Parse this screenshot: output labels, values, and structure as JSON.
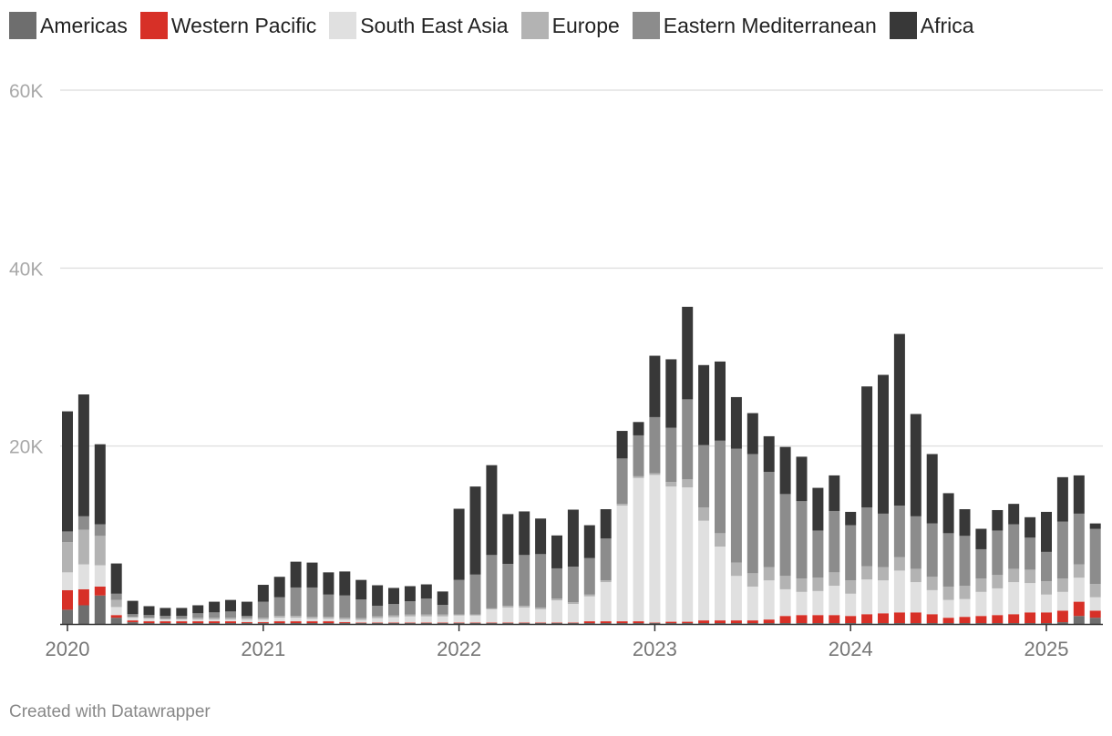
{
  "chart_data": {
    "type": "bar",
    "stacked": true,
    "title": "",
    "xlabel": "",
    "ylabel": "",
    "ylim": [
      0,
      60000
    ],
    "y_ticks": [
      {
        "value": 20000,
        "label": "20K"
      },
      {
        "value": 40000,
        "label": "40K"
      },
      {
        "value": 60000,
        "label": "60K"
      }
    ],
    "x_ticks": [
      {
        "index": 0,
        "label": "2020"
      },
      {
        "index": 12,
        "label": "2021"
      },
      {
        "index": 24,
        "label": "2022"
      },
      {
        "index": 36,
        "label": "2023"
      },
      {
        "index": 48,
        "label": "2024"
      },
      {
        "index": 60,
        "label": "2025"
      }
    ],
    "categories": [
      "2020-01",
      "2020-02",
      "2020-03",
      "2020-04",
      "2020-05",
      "2020-06",
      "2020-07",
      "2020-08",
      "2020-09",
      "2020-10",
      "2020-11",
      "2020-12",
      "2021-01",
      "2021-02",
      "2021-03",
      "2021-04",
      "2021-05",
      "2021-06",
      "2021-07",
      "2021-08",
      "2021-09",
      "2021-10",
      "2021-11",
      "2021-12",
      "2022-01",
      "2022-02",
      "2022-03",
      "2022-04",
      "2022-05",
      "2022-06",
      "2022-07",
      "2022-08",
      "2022-09",
      "2022-10",
      "2022-11",
      "2022-12",
      "2023-01",
      "2023-02",
      "2023-03",
      "2023-04",
      "2023-05",
      "2023-06",
      "2023-07",
      "2023-08",
      "2023-09",
      "2023-10",
      "2023-11",
      "2023-12",
      "2024-01",
      "2024-02",
      "2024-03",
      "2024-04",
      "2024-05",
      "2024-06",
      "2024-07",
      "2024-08",
      "2024-09",
      "2024-10",
      "2024-11",
      "2024-12",
      "2025-01",
      "2025-02",
      "2025-03",
      "2025-04"
    ],
    "series": [
      {
        "name": "Americas",
        "color": "#6e6e6e",
        "values": [
          1600,
          2100,
          3200,
          700,
          200,
          100,
          100,
          100,
          100,
          100,
          100,
          100,
          100,
          100,
          100,
          100,
          100,
          100,
          100,
          100,
          100,
          100,
          100,
          100,
          100,
          100,
          100,
          100,
          100,
          100,
          100,
          100,
          100,
          100,
          100,
          100,
          100,
          100,
          100,
          100,
          100,
          100,
          100,
          100,
          100,
          100,
          100,
          100,
          100,
          100,
          100,
          100,
          100,
          100,
          100,
          100,
          100,
          100,
          100,
          100,
          100,
          200,
          900,
          700
        ]
      },
      {
        "name": "Western Pacific",
        "color": "#d73027",
        "values": [
          2200,
          1800,
          1000,
          300,
          200,
          200,
          200,
          200,
          200,
          200,
          200,
          100,
          100,
          200,
          200,
          200,
          200,
          100,
          50,
          50,
          50,
          50,
          50,
          50,
          50,
          50,
          50,
          50,
          50,
          50,
          50,
          50,
          200,
          200,
          200,
          200,
          50,
          150,
          150,
          300,
          300,
          300,
          300,
          400,
          800,
          900,
          900,
          900,
          800,
          1000,
          1100,
          1200,
          1200,
          1000,
          600,
          700,
          800,
          900,
          1000,
          1200,
          1200,
          1300,
          1600,
          800
        ]
      },
      {
        "name": "South East Asia",
        "color": "#e0e0e0",
        "values": [
          2000,
          2800,
          2400,
          900,
          300,
          300,
          200,
          200,
          200,
          200,
          200,
          300,
          300,
          400,
          400,
          300,
          300,
          300,
          300,
          500,
          600,
          700,
          700,
          700,
          800,
          800,
          1500,
          1700,
          1700,
          1500,
          2500,
          2100,
          2800,
          4400,
          13000,
          16100,
          16600,
          15200,
          15100,
          11200,
          8300,
          5000,
          3800,
          4400,
          3000,
          2600,
          2700,
          3300,
          2500,
          3900,
          3700,
          4700,
          3400,
          2700,
          2000,
          2000,
          2700,
          3000,
          3600,
          3300,
          2000,
          2100,
          2700,
          1500
        ]
      },
      {
        "name": "Europe",
        "color": "#b3b3b3",
        "values": [
          3400,
          3900,
          3300,
          800,
          100,
          100,
          100,
          100,
          200,
          200,
          200,
          200,
          200,
          200,
          200,
          200,
          200,
          200,
          200,
          200,
          200,
          200,
          200,
          200,
          100,
          100,
          100,
          200,
          200,
          200,
          200,
          200,
          200,
          200,
          200,
          200,
          200,
          500,
          900,
          1500,
          1500,
          1500,
          1500,
          1500,
          1500,
          1500,
          1500,
          1500,
          1500,
          1500,
          1500,
          1500,
          1500,
          1500,
          1500,
          1500,
          1500,
          1500,
          1500,
          1500,
          1500,
          1500,
          1500,
          1500
        ]
      },
      {
        "name": "Eastern Mediterranean",
        "color": "#8c8c8c",
        "values": [
          1200,
          1500,
          1300,
          700,
          300,
          300,
          300,
          300,
          500,
          600,
          700,
          200,
          1800,
          2100,
          3200,
          3300,
          2500,
          2500,
          2100,
          1200,
          1300,
          1500,
          1800,
          1100,
          3900,
          4500,
          6000,
          4700,
          5700,
          6000,
          3400,
          4000,
          4100,
          4700,
          5100,
          4600,
          6300,
          6100,
          9000,
          7000,
          10400,
          12800,
          13400,
          10700,
          9200,
          8700,
          5300,
          6900,
          6200,
          6600,
          6000,
          5800,
          5900,
          6000,
          6000,
          5600,
          3300,
          5000,
          5000,
          3600,
          3300,
          6400,
          5700,
          6200
        ]
      },
      {
        "name": "Africa",
        "color": "#383838",
        "values": [
          13500,
          13700,
          9000,
          3400,
          1500,
          1000,
          900,
          900,
          900,
          1200,
          1300,
          1600,
          1900,
          2300,
          2900,
          2800,
          2500,
          2700,
          2200,
          2300,
          1800,
          1700,
          1600,
          1500,
          8000,
          9900,
          10100,
          5600,
          4900,
          4000,
          3700,
          6400,
          3700,
          3300,
          3100,
          1500,
          6900,
          7700,
          10400,
          9000,
          8900,
          5800,
          4600,
          4000,
          5300,
          5000,
          4800,
          4000,
          1500,
          13600,
          15600,
          19300,
          11500,
          7800,
          4500,
          3000,
          2300,
          2300,
          2300,
          2300,
          4500,
          5000,
          4300,
          600
        ]
      }
    ]
  },
  "legend": [
    {
      "label": "Americas",
      "color": "#6e6e6e"
    },
    {
      "label": "Western Pacific",
      "color": "#d73027"
    },
    {
      "label": "South East Asia",
      "color": "#e0e0e0"
    },
    {
      "label": "Europe",
      "color": "#b3b3b3"
    },
    {
      "label": "Eastern Mediterranean",
      "color": "#8c8c8c"
    },
    {
      "label": "Africa",
      "color": "#383838"
    }
  ],
  "footer": {
    "credit": "Created with Datawrapper"
  }
}
